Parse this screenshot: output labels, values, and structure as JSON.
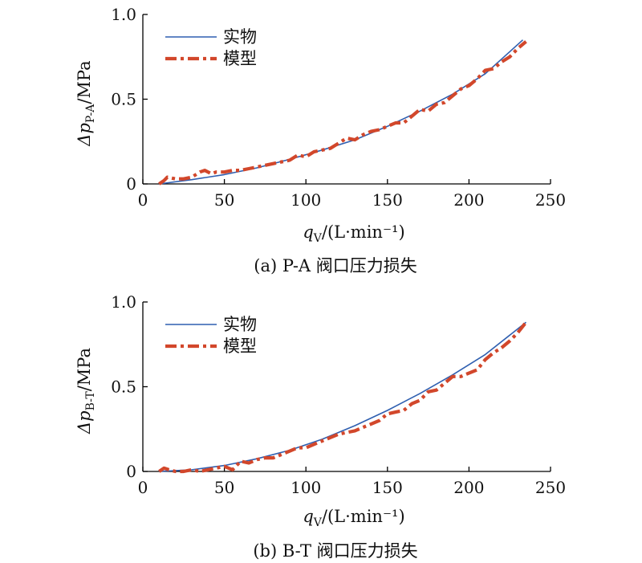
{
  "legend": {
    "actual": "实物",
    "model": "模型"
  },
  "colors": {
    "actual": "#2f5fb0",
    "model": "#d2472b"
  },
  "chart_data": [
    {
      "type": "line",
      "caption": "(a) P-A 阀口压力损失",
      "ylabel": {
        "main": "Δp",
        "sub": "P-A",
        "unit": "/MPa"
      },
      "xlabel": {
        "main": "q",
        "sub": "V",
        "unit": "/(L·min⁻¹)"
      },
      "xlim": [
        0,
        250
      ],
      "ylim": [
        0,
        1.0
      ],
      "xticks": [
        0,
        50,
        100,
        150,
        200,
        250
      ],
      "xtick_labels": [
        "0",
        "50",
        "100",
        "150",
        "200",
        "250"
      ],
      "yticks": [
        0,
        0.5,
        1.0
      ],
      "ytick_labels": [
        "0",
        "0.5",
        "1.0"
      ],
      "legend_position": "top-left",
      "series": [
        {
          "name": "实物",
          "style": "solid",
          "x": [
            10,
            30,
            50,
            70,
            90,
            110,
            130,
            150,
            170,
            190,
            210,
            233
          ],
          "y": [
            0,
            0.025,
            0.055,
            0.095,
            0.145,
            0.2,
            0.26,
            0.34,
            0.43,
            0.53,
            0.65,
            0.85
          ]
        },
        {
          "name": "模型",
          "style": "dash-dot",
          "x": [
            10,
            13,
            15,
            20,
            25,
            30,
            35,
            38,
            42,
            45,
            50,
            55,
            60,
            65,
            70,
            75,
            80,
            85,
            90,
            95,
            100,
            105,
            110,
            115,
            120,
            125,
            130,
            135,
            140,
            145,
            150,
            155,
            160,
            165,
            170,
            175,
            180,
            185,
            190,
            195,
            200,
            205,
            210,
            215,
            220,
            225,
            230,
            235
          ],
          "y": [
            0,
            0.02,
            0.04,
            0.03,
            0.03,
            0.04,
            0.07,
            0.08,
            0.06,
            0.07,
            0.07,
            0.08,
            0.08,
            0.09,
            0.1,
            0.11,
            0.12,
            0.13,
            0.14,
            0.17,
            0.16,
            0.19,
            0.2,
            0.21,
            0.24,
            0.27,
            0.26,
            0.29,
            0.31,
            0.32,
            0.34,
            0.36,
            0.36,
            0.4,
            0.44,
            0.43,
            0.47,
            0.48,
            0.52,
            0.56,
            0.58,
            0.62,
            0.67,
            0.68,
            0.72,
            0.75,
            0.8,
            0.84
          ]
        }
      ]
    },
    {
      "type": "line",
      "caption": "(b) B-T 阀口压力损失",
      "ylabel": {
        "main": "Δp",
        "sub": "B-T",
        "unit": "/MPa"
      },
      "xlabel": {
        "main": "q",
        "sub": "V",
        "unit": "/(L·min⁻¹)"
      },
      "xlim": [
        0,
        250
      ],
      "ylim": [
        0,
        1.0
      ],
      "xticks": [
        0,
        50,
        100,
        150,
        200,
        250
      ],
      "xtick_labels": [
        "0",
        "50",
        "100",
        "150",
        "200",
        "250"
      ],
      "yticks": [
        0,
        0.5,
        1.0
      ],
      "ytick_labels": [
        "0",
        "0.5",
        "1.0"
      ],
      "legend_position": "top-left",
      "series": [
        {
          "name": "实物",
          "style": "solid",
          "x": [
            10,
            30,
            50,
            70,
            90,
            110,
            130,
            150,
            170,
            190,
            210,
            235
          ],
          "y": [
            0,
            0.01,
            0.035,
            0.075,
            0.125,
            0.19,
            0.27,
            0.36,
            0.46,
            0.57,
            0.69,
            0.88
          ]
        },
        {
          "name": "模型",
          "style": "dash-dot",
          "x": [
            10,
            13,
            16,
            20,
            25,
            30,
            35,
            40,
            45,
            50,
            55,
            60,
            65,
            70,
            75,
            80,
            85,
            90,
            95,
            100,
            105,
            110,
            115,
            120,
            125,
            130,
            135,
            140,
            145,
            150,
            155,
            160,
            165,
            170,
            175,
            180,
            185,
            190,
            195,
            200,
            205,
            210,
            215,
            220,
            225,
            230,
            235
          ],
          "y": [
            0,
            0.02,
            0.01,
            0,
            0,
            0.01,
            0,
            0.01,
            0.02,
            0.03,
            0.01,
            0.06,
            0.05,
            0.07,
            0.08,
            0.08,
            0.1,
            0.12,
            0.14,
            0.14,
            0.16,
            0.18,
            0.2,
            0.22,
            0.23,
            0.24,
            0.26,
            0.28,
            0.3,
            0.34,
            0.35,
            0.36,
            0.4,
            0.42,
            0.47,
            0.48,
            0.52,
            0.56,
            0.56,
            0.58,
            0.6,
            0.66,
            0.7,
            0.73,
            0.77,
            0.82,
            0.88
          ]
        }
      ]
    }
  ]
}
